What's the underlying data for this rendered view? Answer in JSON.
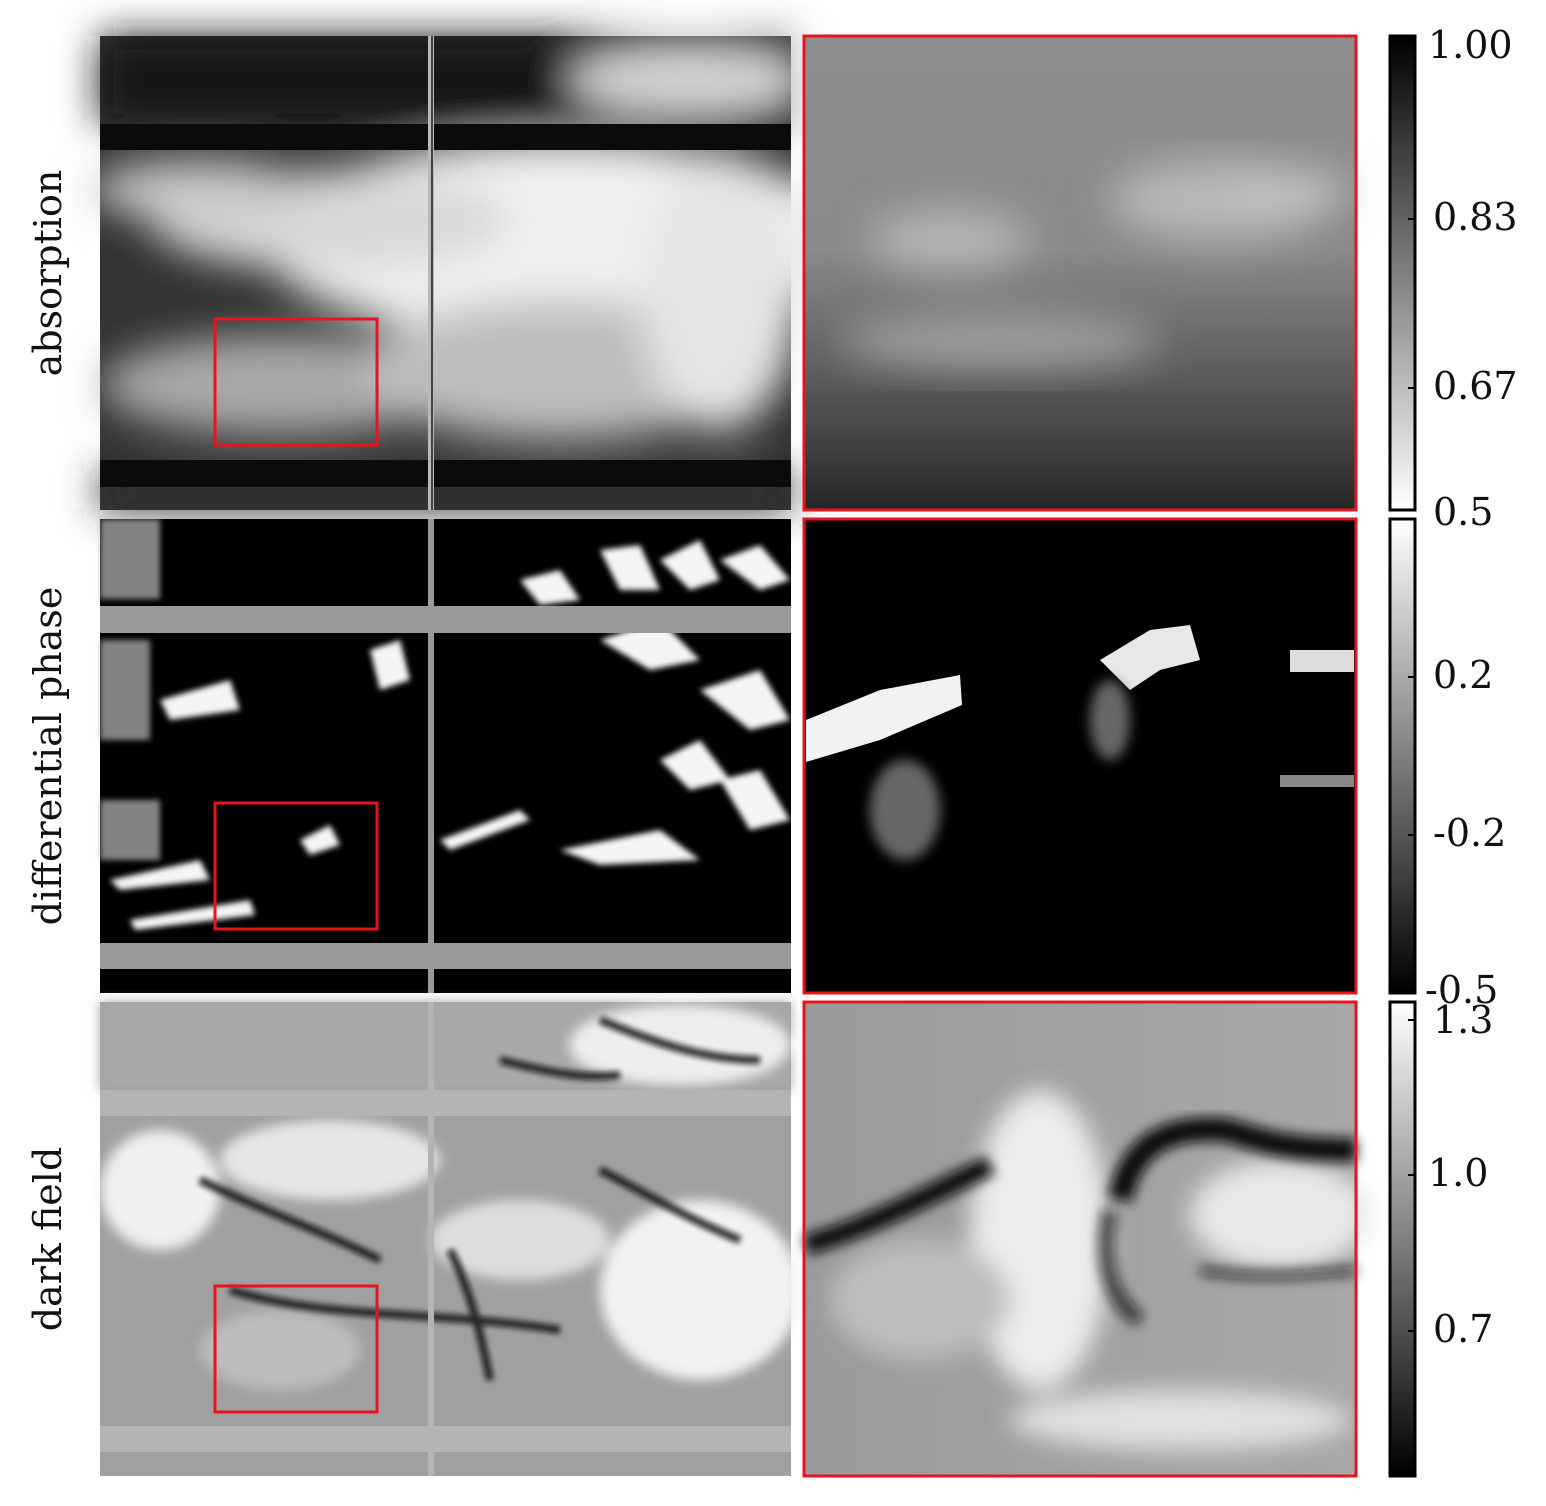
{
  "panels": [
    {
      "label": "absorption",
      "colormap": "gray_r",
      "colorbar_ticks": [
        "1.00",
        "0.83",
        "0.67",
        "0.5"
      ],
      "colorbar_range": [
        0.5,
        1.0
      ]
    },
    {
      "label": "differential phase",
      "colormap": "gray",
      "colorbar_ticks": [
        "0.5",
        "0.2",
        "-0.2",
        "-0.5"
      ],
      "colorbar_range": [
        -0.5,
        0.5
      ]
    },
    {
      "label": "dark field",
      "colormap": "gray",
      "colorbar_ticks": [
        "1.3",
        "1.0",
        "0.7"
      ],
      "colorbar_range": [
        0.4,
        1.35
      ]
    }
  ],
  "colors": {
    "roi_box": "#e8141b",
    "band_absorption": "#0b0b0b",
    "band_phase": "#9a9a9a",
    "band_darkfield": "#b4b4b4"
  }
}
